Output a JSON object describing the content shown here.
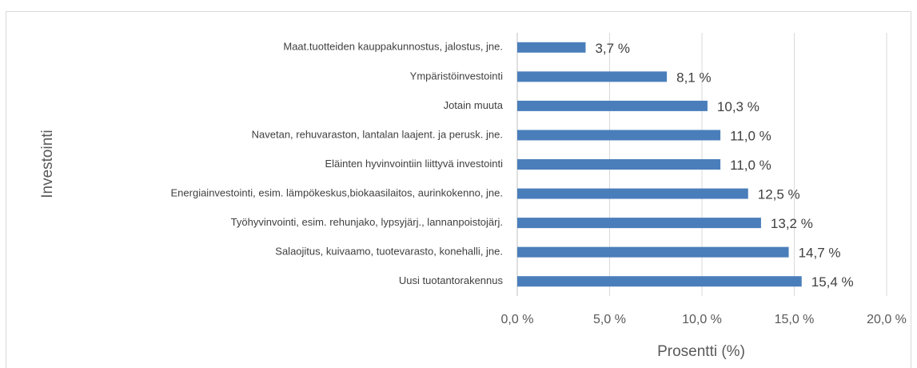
{
  "chart_data": {
    "type": "bar",
    "orientation": "horizontal",
    "x_label": "Prosentti (%)",
    "y_label": "Investointi",
    "categories": [
      "Maat.tuotteiden kauppakunnostus, jalostus, jne.",
      "Ympäristöinvestointi",
      "Jotain muuta",
      "Navetan, rehuvaraston, lantalan laajent. ja perusk. jne.",
      "Eläinten hyvinvointiin liittyvä investointi",
      "Energiainvestointi, esim. lämpökeskus,biokaasilaitos, aurinkokenno, jne.",
      "Työhyvinvointi, esim. rehunjako, lypsyjärj., lannanpoistojärj.",
      "Salaojitus, kuivaamo, tuotevarasto, konehalli, jne.",
      "Uusi tuotantorakennus"
    ],
    "values": [
      3.7,
      8.1,
      10.3,
      11.0,
      11.0,
      12.5,
      13.2,
      14.7,
      15.4
    ],
    "value_labels": [
      "3,7 %",
      "8,1 %",
      "10,3 %",
      "11,0 %",
      "11,0 %",
      "12,5 %",
      "13,2 %",
      "14,7 %",
      "15,4 %"
    ],
    "color": "#4a7ebb",
    "xlim": [
      0,
      20
    ],
    "xticks": [
      {
        "value": 0,
        "label": "0,0 %"
      },
      {
        "value": 5,
        "label": "5,0 %"
      },
      {
        "value": 10,
        "label": "10,0 %"
      },
      {
        "value": 15,
        "label": "15,0 %"
      },
      {
        "value": 20,
        "label": "20,0 %"
      }
    ],
    "grid": true
  }
}
